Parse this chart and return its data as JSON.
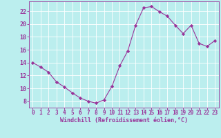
{
  "x": [
    0,
    1,
    2,
    3,
    4,
    5,
    6,
    7,
    8,
    9,
    10,
    11,
    12,
    13,
    14,
    15,
    16,
    17,
    18,
    19,
    20,
    21,
    22,
    23
  ],
  "y": [
    14,
    13.3,
    12.5,
    11.0,
    10.2,
    9.3,
    8.5,
    8.0,
    7.7,
    8.2,
    10.3,
    13.5,
    15.8,
    19.8,
    22.5,
    22.7,
    21.9,
    21.2,
    19.8,
    18.5,
    19.8,
    17.0,
    16.5,
    17.4
  ],
  "line_color": "#993399",
  "marker": "D",
  "marker_size": 2.2,
  "bg_color": "#bbeeee",
  "grid_color": "#ffffff",
  "xlabel": "Windchill (Refroidissement éolien,°C)",
  "ylabel": "",
  "ylim": [
    7,
    23.5
  ],
  "xlim": [
    -0.5,
    23.5
  ],
  "yticks": [
    8,
    10,
    12,
    14,
    16,
    18,
    20,
    22
  ],
  "xticks": [
    0,
    1,
    2,
    3,
    4,
    5,
    6,
    7,
    8,
    9,
    10,
    11,
    12,
    13,
    14,
    15,
    16,
    17,
    18,
    19,
    20,
    21,
    22,
    23
  ],
  "xtick_labels": [
    "0",
    "1",
    "2",
    "3",
    "4",
    "5",
    "6",
    "7",
    "8",
    "9",
    "10",
    "11",
    "12",
    "13",
    "14",
    "15",
    "16",
    "17",
    "18",
    "19",
    "20",
    "21",
    "22",
    "23"
  ],
  "tick_color": "#993399",
  "label_color": "#993399",
  "spine_color": "#993399",
  "tick_fontsize": 5.5,
  "xlabel_fontsize": 6.0
}
